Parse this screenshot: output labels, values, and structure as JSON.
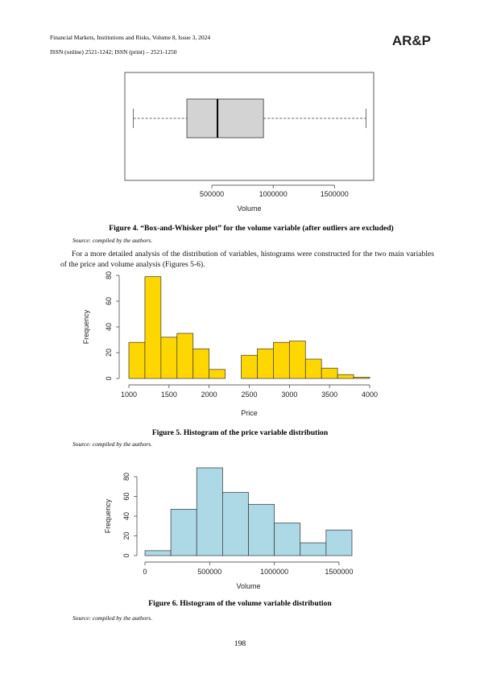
{
  "header": {
    "journal": "Financial Markets, Institutions and Risks, Volume 8, Issue 3, 2024",
    "issn": "ISSN (online) 2521-1242; ISSN (print) – 2521-1250",
    "logo": "AR&P"
  },
  "chart_data": [
    {
      "type": "box",
      "x_label": "Volume",
      "xlim": [
        -210000,
        1820000
      ],
      "xticks": [
        500000,
        1000000,
        1500000
      ],
      "whisker_low": -140000,
      "q1": 296000,
      "median": 546000,
      "q3": 921000,
      "whisker_high": 1757000,
      "color": "#d3d3d3"
    },
    {
      "type": "histogram",
      "x_label": "Price",
      "y_label": "Frequency",
      "bins": [
        1000,
        1200,
        1400,
        1600,
        1800,
        2000,
        2200,
        2400,
        2600,
        2800,
        3000,
        3200,
        3400,
        3600,
        3800,
        4000
      ],
      "values": [
        28,
        79,
        32,
        35,
        23,
        7,
        0,
        18,
        23,
        28,
        29,
        15,
        8,
        3,
        1
      ],
      "xlim": [
        1000,
        4000
      ],
      "xticks": [
        1000,
        1500,
        2000,
        2500,
        3000,
        3500,
        4000
      ],
      "ylim": [
        0,
        80
      ],
      "yticks": [
        0,
        20,
        40,
        60,
        80
      ],
      "color": "#ffd700"
    },
    {
      "type": "histogram",
      "x_label": "Volume",
      "y_label": "Frequency",
      "bins": [
        0,
        200000,
        400000,
        600000,
        800000,
        1000000,
        1200000,
        1400000,
        1600000
      ],
      "values": [
        5,
        47,
        89,
        64,
        52,
        33,
        13,
        26
      ],
      "xlim": [
        0,
        1600000
      ],
      "xticks": [
        0,
        500000,
        1000000,
        1500000
      ],
      "ylim": [
        0,
        80
      ],
      "yticks": [
        0,
        20,
        40,
        60,
        80
      ],
      "color": "#add8e6"
    }
  ],
  "captions": [
    "Figure 4. “Box-and-Whisker plot” for the volume variable (after outliers are excluded)",
    "Figure 5. Histogram of the price variable distribution",
    "Figure 6. Histogram of the volume variable distribution"
  ],
  "sources": [
    "Source: compiled by the authors.",
    "Source: compiled by the authors.",
    "Source: compiled by the authors."
  ],
  "paragraph": "For a more detailed analysis of the distribution of variables, histograms were constructed for the two main variables of the price and volume analysis (Figures 5-6).",
  "page_number": "198"
}
